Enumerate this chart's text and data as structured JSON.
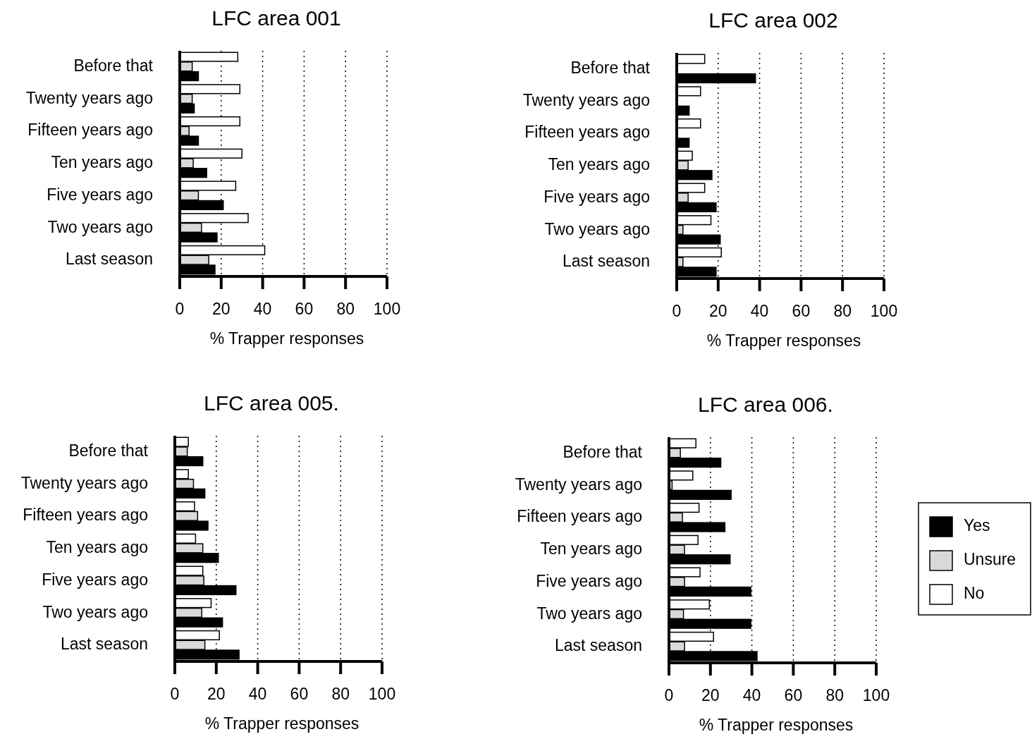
{
  "chart_data": [
    {
      "type": "bar",
      "orientation": "horizontal",
      "title": "LFC area 001",
      "xlabel": "% Trapper responses",
      "categories": [
        "Before that",
        "Twenty years ago",
        "Fifteen years ago",
        "Ten years ago",
        "Five years ago",
        "Two years ago",
        "Last season"
      ],
      "xlim": [
        0,
        100
      ],
      "xticks": [
        0,
        20,
        40,
        60,
        80,
        100
      ],
      "grid": "x",
      "series": [
        {
          "color": "#ffffff",
          "values": [
            28,
            29,
            29,
            30,
            27,
            33,
            41
          ]
        },
        {
          "color": "#d9d9d9",
          "values": [
            6,
            6,
            4.5,
            6.5,
            9,
            10.5,
            14
          ]
        },
        {
          "color": "#000000",
          "values": [
            9,
            7,
            9,
            13,
            21,
            18,
            17
          ]
        }
      ]
    },
    {
      "type": "bar",
      "orientation": "horizontal",
      "title": "LFC area 002",
      "xlabel": "% Trapper responses",
      "categories": [
        "Before that",
        "Twenty years ago",
        "Fifteen years ago",
        "Ten years ago",
        "Five years ago",
        "Two years ago",
        "Last season"
      ],
      "xlim": [
        0,
        100
      ],
      "xticks": [
        0,
        20,
        40,
        60,
        80,
        100
      ],
      "grid": "x",
      "series": [
        {
          "color": "#ffffff",
          "values": [
            13.5,
            11.5,
            11.5,
            7.5,
            13.5,
            16.5,
            21.5
          ]
        },
        {
          "color": "#d9d9d9",
          "values": [
            0,
            0,
            0,
            5.5,
            5.5,
            3,
            3
          ]
        },
        {
          "color": "#000000",
          "values": [
            38,
            6,
            6,
            17,
            19,
            21,
            19
          ]
        }
      ]
    },
    {
      "type": "bar",
      "orientation": "horizontal",
      "title": "LFC area 005.",
      "xlabel": "% Trapper responses",
      "categories": [
        "Before that",
        "Twenty years ago",
        "Fifteen years ago",
        "Ten years ago",
        "Five years ago",
        "Two years ago",
        "Last season"
      ],
      "xlim": [
        0,
        100
      ],
      "xticks": [
        0,
        20,
        40,
        60,
        80,
        100
      ],
      "grid": "x",
      "series": [
        {
          "color": "#ffffff",
          "values": [
            6.5,
            6.5,
            9.5,
            10,
            13.5,
            17.5,
            21.5
          ]
        },
        {
          "color": "#d9d9d9",
          "values": [
            6,
            9,
            11,
            13.5,
            14,
            13,
            14.5
          ]
        },
        {
          "color": "#000000",
          "values": [
            13.5,
            14.5,
            16,
            21,
            29.5,
            23,
            31
          ]
        }
      ]
    },
    {
      "type": "bar",
      "orientation": "horizontal",
      "title": "LFC area 006.",
      "xlabel": "% Trapper responses",
      "categories": [
        "Before that",
        "Twenty years ago",
        "Fifteen years ago",
        "Ten years ago",
        "Five years ago",
        "Two years ago",
        "Last season"
      ],
      "xlim": [
        0,
        100
      ],
      "xticks": [
        0,
        20,
        40,
        60,
        80,
        100
      ],
      "grid": "x",
      "legend": "right",
      "series": [
        {
          "name": "No",
          "color": "#ffffff",
          "values": [
            13,
            11.5,
            14.5,
            14,
            15,
            19.5,
            21.5
          ]
        },
        {
          "name": "Unsure",
          "color": "#d9d9d9",
          "values": [
            5.5,
            1.5,
            6.5,
            7.5,
            7.5,
            7,
            7.5
          ]
        },
        {
          "name": "Yes",
          "color": "#000000",
          "values": [
            25,
            30,
            27,
            29.5,
            39.5,
            39.5,
            42.5
          ]
        }
      ]
    }
  ]
}
